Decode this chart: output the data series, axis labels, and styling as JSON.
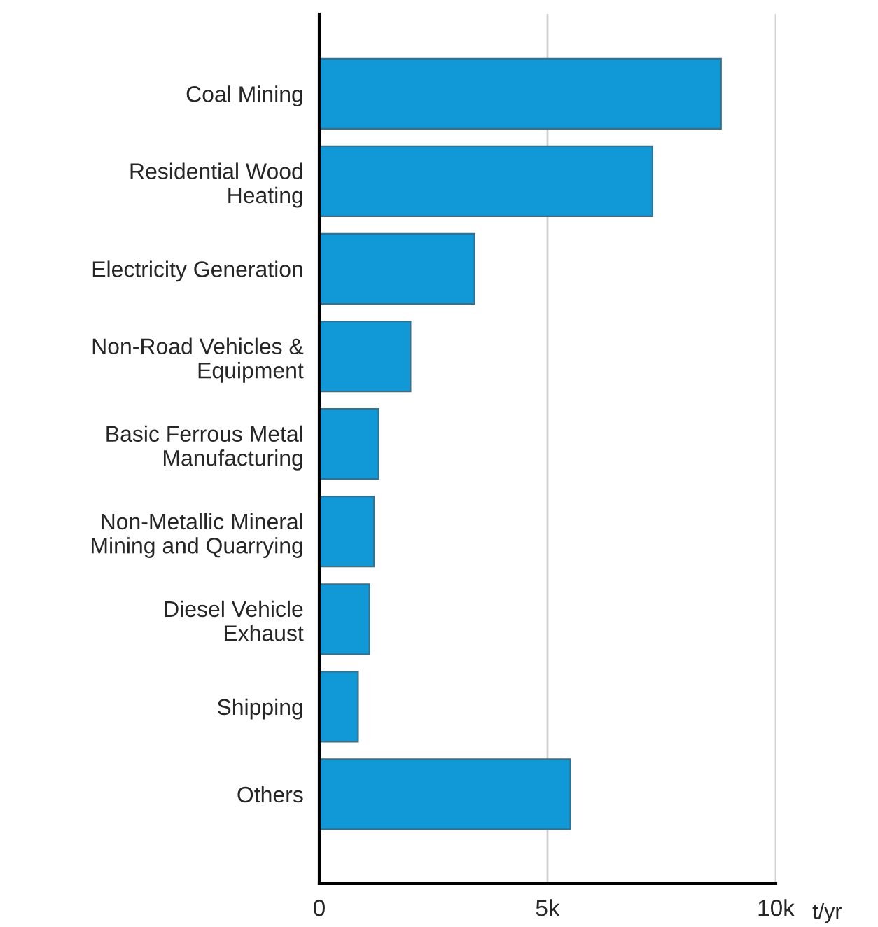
{
  "chart_data": {
    "type": "bar",
    "orientation": "horizontal",
    "xlabel": "t/yr",
    "categories": [
      "Coal Mining",
      "Residential Wood\nHeating",
      "Electricity Generation",
      "Non-Road Vehicles &\nEquipment",
      "Basic Ferrous Metal\nManufacturing",
      "Non-Metallic Mineral\nMining and Quarrying",
      "Diesel Vehicle\nExhaust",
      "Shipping",
      "Others"
    ],
    "values": [
      8800,
      7300,
      3400,
      2000,
      1300,
      1200,
      1100,
      850,
      5500
    ],
    "color": "#1099d6",
    "xlim": [
      0,
      10000
    ],
    "xticks": [
      {
        "value": 0,
        "label": "0"
      },
      {
        "value": 5000,
        "label": "5k"
      },
      {
        "value": 10000,
        "label": "10k"
      }
    ],
    "grid": "x",
    "legend": false
  }
}
